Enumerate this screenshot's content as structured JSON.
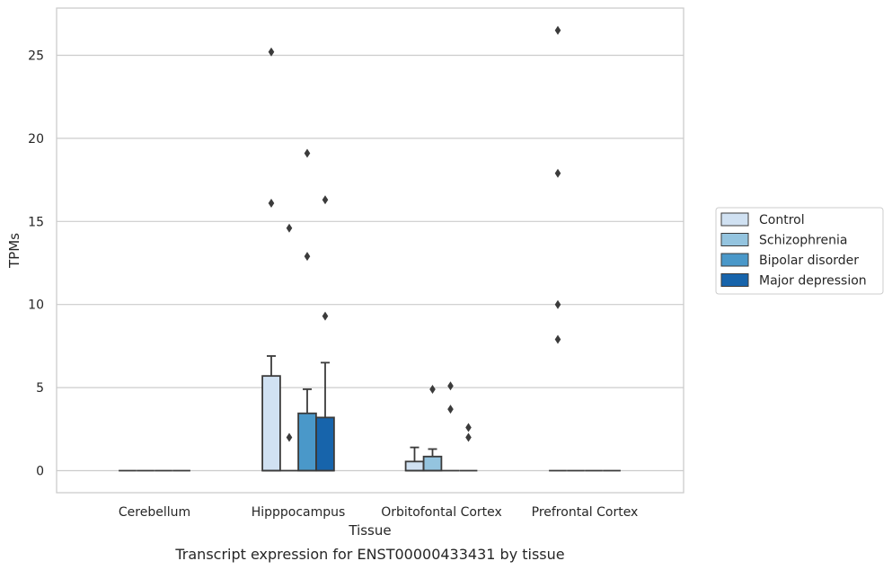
{
  "chart_data": {
    "type": "box",
    "caption": "Transcript expression for ENST00000433431 by tissue",
    "xlabel": "Tissue",
    "ylabel": "TPMs",
    "ylim": [
      -1.3,
      27.8
    ],
    "yticks": [
      0,
      5,
      10,
      15,
      20,
      25
    ],
    "grid": "horizontal",
    "legend_position": "right",
    "categories": [
      "Cerebellum",
      "Hipppocampus",
      "Orbitofontal Cortex",
      "Prefrontal Cortex"
    ],
    "series": [
      {
        "name": "Control",
        "color": "#d0e1f2",
        "boxes": [
          {
            "q1": 0,
            "median": 0,
            "q3": 0,
            "whisker_high": 0,
            "outliers": []
          },
          {
            "q1": 0,
            "median": 0,
            "q3": 5.7,
            "whisker_high": 6.9,
            "outliers": [
              16.1,
              25.2
            ]
          },
          {
            "q1": 0,
            "median": 0,
            "q3": 0.55,
            "whisker_high": 1.4,
            "outliers": []
          },
          {
            "q1": 0,
            "median": 0,
            "q3": 0,
            "whisker_high": 0,
            "outliers": [
              7.9,
              10.0,
              17.9,
              26.5
            ]
          }
        ]
      },
      {
        "name": "Schizophrenia",
        "color": "#94c4df",
        "boxes": [
          {
            "q1": 0,
            "median": 0,
            "q3": 0,
            "whisker_high": 0,
            "outliers": []
          },
          {
            "q1": 0,
            "median": 0,
            "q3": 0,
            "whisker_high": 0,
            "outliers": [
              2.0,
              14.6
            ]
          },
          {
            "q1": 0,
            "median": 0,
            "q3": 0.85,
            "whisker_high": 1.3,
            "outliers": [
              4.9
            ]
          },
          {
            "q1": 0,
            "median": 0,
            "q3": 0,
            "whisker_high": 0,
            "outliers": []
          }
        ]
      },
      {
        "name": "Bipolar disorder",
        "color": "#4a98c9",
        "boxes": [
          {
            "q1": 0,
            "median": 0,
            "q3": 0,
            "whisker_high": 0,
            "outliers": []
          },
          {
            "q1": 0,
            "median": 0,
            "q3": 3.45,
            "whisker_high": 4.9,
            "outliers": [
              12.9,
              19.1
            ]
          },
          {
            "q1": 0,
            "median": 0,
            "q3": 0,
            "whisker_high": 0,
            "outliers": [
              3.7,
              5.1
            ]
          },
          {
            "q1": 0,
            "median": 0,
            "q3": 0,
            "whisker_high": 0,
            "outliers": []
          }
        ]
      },
      {
        "name": "Major depression",
        "color": "#1764ab",
        "boxes": [
          {
            "q1": 0,
            "median": 0,
            "q3": 0,
            "whisker_high": 0,
            "outliers": []
          },
          {
            "q1": 0,
            "median": 0,
            "q3": 3.2,
            "whisker_high": 6.5,
            "outliers": [
              9.3,
              16.3
            ]
          },
          {
            "q1": 0,
            "median": 0,
            "q3": 0,
            "whisker_high": 0,
            "outliers": [
              2.0,
              2.6
            ]
          },
          {
            "q1": 0,
            "median": 0,
            "q3": 0,
            "whisker_high": 0,
            "outliers": []
          }
        ]
      }
    ]
  }
}
